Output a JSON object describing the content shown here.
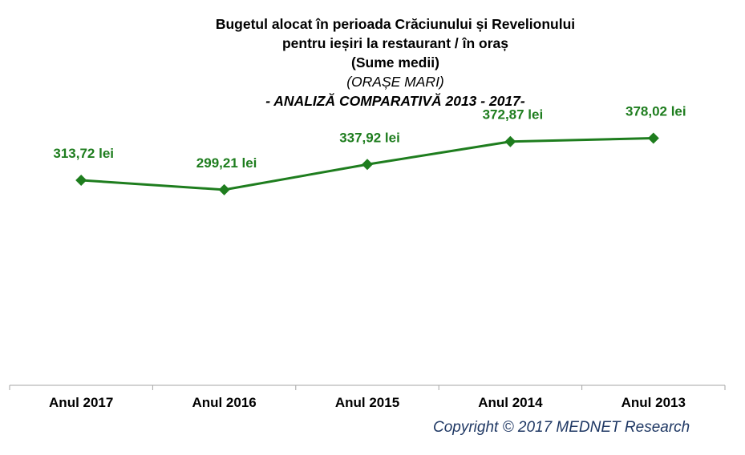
{
  "header": {
    "title_line1": "Bugetul alocat în perioada Crăciunului și Revelionului",
    "title_line2": "pentru ieșiri la restaurant / în oraș",
    "title_line3": "(Sume medii)",
    "subtitle": "(ORAȘE MARI)",
    "analysis_label": "- ANALIZĂ COMPARATIVĂ 2013 - 2017-"
  },
  "footer": {
    "copyright": "Copyright ©  2017 MEDNET Research"
  },
  "colors": {
    "series": "#1e7d1e",
    "label_text": "#1e7d1e",
    "axis": "#a6a6a6",
    "copyright": "#1f3864"
  },
  "chart_data": {
    "type": "line",
    "title": "Bugetul alocat în perioada Crăciunului și Revelionului pentru ieșiri la restaurant / în oraș (Sume medii)",
    "subtitle": "(ORAȘE MARI) - ANALIZĂ COMPARATIVĂ 2013 - 2017-",
    "xlabel": "",
    "ylabel": "",
    "categories": [
      "Anul 2017",
      "Anul 2016",
      "Anul 2015",
      "Anul 2014",
      "Anul 2013"
    ],
    "series": [
      {
        "values": [
          313.72,
          299.21,
          337.92,
          372.87,
          378.02
        ],
        "labels": [
          "313,72 lei",
          "299,21 lei",
          "337,92 lei",
          "372,87 lei",
          "378,02 lei"
        ],
        "marker": "diamond"
      }
    ],
    "ylim": [
      0,
      500
    ],
    "grid": false,
    "legend": "none"
  }
}
